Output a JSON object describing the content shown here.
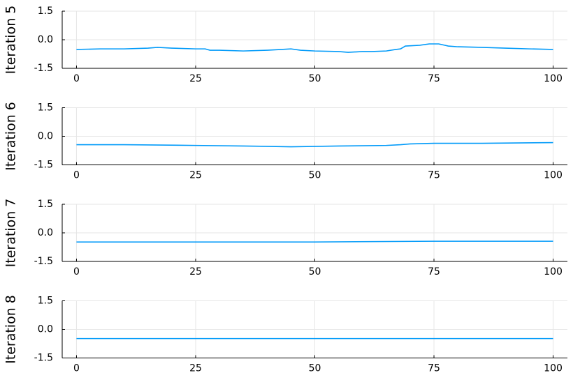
{
  "chart_data": [
    {
      "type": "line",
      "ylabel": "Iteration 5",
      "color": "#009af9",
      "grid": true,
      "x": [
        0,
        5,
        10,
        15,
        17,
        20,
        25,
        27,
        28,
        30,
        35,
        40,
        43,
        45,
        47,
        50,
        55,
        57,
        60,
        62,
        65,
        67,
        68,
        69,
        72,
        74,
        76,
        78,
        80,
        85,
        90,
        95,
        100
      ],
      "values": [
        -0.51,
        -0.48,
        -0.48,
        -0.44,
        -0.4,
        -0.44,
        -0.48,
        -0.48,
        -0.55,
        -0.55,
        -0.59,
        -0.55,
        -0.51,
        -0.48,
        -0.55,
        -0.59,
        -0.62,
        -0.66,
        -0.62,
        -0.62,
        -0.59,
        -0.51,
        -0.48,
        -0.33,
        -0.29,
        -0.22,
        -0.22,
        -0.33,
        -0.37,
        -0.4,
        -0.44,
        -0.48,
        -0.51
      ],
      "xlim": [
        -3,
        103
      ],
      "xticks": [
        0,
        25,
        50,
        75,
        100
      ],
      "ylim": [
        -1.5,
        1.5
      ],
      "yticks": [
        -1.5,
        {
          "value": 0,
          "label": "0.0"
        },
        1.5
      ]
    },
    {
      "type": "line",
      "ylabel": "Iteration 6",
      "color": "#009af9",
      "grid": true,
      "x": [
        0,
        10,
        25,
        35,
        45,
        55,
        65,
        68,
        70,
        75,
        85,
        100
      ],
      "values": [
        -0.44,
        -0.44,
        -0.48,
        -0.51,
        -0.55,
        -0.51,
        -0.48,
        -0.44,
        -0.4,
        -0.37,
        -0.37,
        -0.33
      ],
      "xlim": [
        -3,
        103
      ],
      "xticks": [
        0,
        25,
        50,
        75,
        100
      ],
      "ylim": [
        -1.5,
        1.5
      ],
      "yticks": [
        -1.5,
        {
          "value": 0,
          "label": "0.0"
        },
        1.5
      ]
    },
    {
      "type": "line",
      "ylabel": "Iteration 7",
      "color": "#009af9",
      "grid": true,
      "x": [
        0,
        25,
        50,
        75,
        100
      ],
      "values": [
        -0.48,
        -0.48,
        -0.48,
        -0.44,
        -0.44
      ],
      "xlim": [
        -3,
        103
      ],
      "xticks": [
        0,
        25,
        50,
        75,
        100
      ],
      "ylim": [
        -1.5,
        1.5
      ],
      "yticks": [
        -1.5,
        {
          "value": 0,
          "label": "0.0"
        },
        1.5
      ]
    },
    {
      "type": "line",
      "ylabel": "Iteration 8",
      "color": "#009af9",
      "grid": true,
      "x": [
        0,
        50,
        100
      ],
      "values": [
        -0.48,
        -0.48,
        -0.48
      ],
      "xlim": [
        -3,
        103
      ],
      "xticks": [
        0,
        25,
        50,
        75,
        100
      ],
      "ylim": [
        -1.5,
        1.5
      ],
      "yticks": [
        -1.5,
        {
          "value": 0,
          "label": "0.0"
        },
        1.5
      ]
    }
  ]
}
